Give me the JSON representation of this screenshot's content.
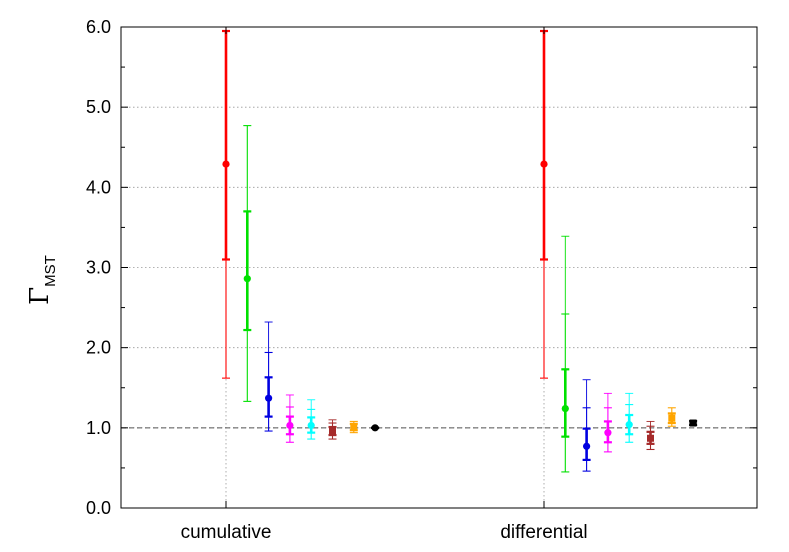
{
  "chart_data": {
    "type": "scatter",
    "ylabel_main": "Γ",
    "ylabel_sub": "MST",
    "ylim": [
      0.0,
      6.0
    ],
    "yticks": [
      "0.0",
      "1.0",
      "2.0",
      "3.0",
      "4.0",
      "5.0",
      "6.0"
    ],
    "categories": [
      "cumulative",
      "differential"
    ],
    "reference_line": 1.0,
    "grid": "horizontal dotted at major ticks, vertical dotted at category positions",
    "series": [
      {
        "color": "#ff0000",
        "marker": "circle",
        "points": [
          {
            "category": "cumulative",
            "y": 4.29,
            "inner": [
              3.1,
              5.95
            ],
            "outer": [
              1.62,
              6.0
            ]
          },
          {
            "category": "differential",
            "y": 4.29,
            "inner": [
              3.1,
              5.95
            ],
            "outer": [
              1.62,
              6.0
            ]
          }
        ]
      },
      {
        "color": "#00e000",
        "marker": "circle",
        "points": [
          {
            "category": "cumulative",
            "y": 2.86,
            "inner": [
              2.22,
              3.7
            ],
            "outer": [
              1.33,
              4.77
            ]
          },
          {
            "category": "differential",
            "y": 1.24,
            "inner": [
              0.89,
              1.73
            ],
            "outer": [
              0.45,
              2.42
            ],
            "outermost": 3.39
          }
        ]
      },
      {
        "color": "#0000e0",
        "marker": "circle",
        "points": [
          {
            "category": "cumulative",
            "y": 1.37,
            "inner": [
              1.14,
              1.63
            ],
            "outer": [
              0.96,
              1.94
            ],
            "outermost": 2.32
          },
          {
            "category": "differential",
            "y": 0.77,
            "inner": [
              0.6,
              0.99
            ],
            "outer": [
              0.46,
              1.25
            ],
            "outermost": 1.6
          }
        ]
      },
      {
        "color": "#ff00ff",
        "marker": "circle",
        "points": [
          {
            "category": "cumulative",
            "y": 1.03,
            "inner": [
              0.92,
              1.14
            ],
            "outer": [
              0.82,
              1.26
            ],
            "outermost": 1.41
          },
          {
            "category": "differential",
            "y": 0.94,
            "inner": [
              0.82,
              1.08
            ],
            "outer": [
              0.7,
              1.25
            ],
            "outermost": 1.43
          }
        ]
      },
      {
        "color": "#00ffff",
        "marker": "circle",
        "points": [
          {
            "category": "cumulative",
            "y": 1.03,
            "inner": [
              0.94,
              1.13
            ],
            "outer": [
              0.86,
              1.23
            ],
            "outermost": 1.35
          },
          {
            "category": "differential",
            "y": 1.04,
            "inner": [
              0.92,
              1.16
            ],
            "outer": [
              0.82,
              1.29
            ],
            "outermost": 1.43
          }
        ]
      },
      {
        "color": "#a52a2a",
        "marker": "square",
        "points": [
          {
            "category": "cumulative",
            "y": 0.96,
            "inner": [
              0.91,
              1.01
            ],
            "outer": [
              0.86,
              1.06
            ],
            "outermost": 1.1
          },
          {
            "category": "differential",
            "y": 0.87,
            "inner": [
              0.8,
              0.95
            ],
            "outer": [
              0.73,
              1.02
            ],
            "outermost": 1.08
          }
        ]
      },
      {
        "color": "#ffa500",
        "marker": "square",
        "points": [
          {
            "category": "cumulative",
            "y": 1.01,
            "inner": [
              0.97,
              1.05
            ],
            "outer": [
              0.94,
              1.08
            ]
          },
          {
            "category": "differential",
            "y": 1.12,
            "inner": [
              1.06,
              1.18
            ],
            "outer": [
              1.02,
              1.25
            ]
          }
        ]
      },
      {
        "color": "#000000",
        "marker": "circle-square",
        "points": [
          {
            "category": "cumulative",
            "y": 1.0,
            "inner": [
              1.0,
              1.0
            ],
            "outer": [
              1.0,
              1.0
            ]
          },
          {
            "category": "differential",
            "y": 1.06,
            "inner": [
              1.04,
              1.08
            ],
            "outer": [
              1.03,
              1.09
            ]
          }
        ]
      }
    ]
  }
}
